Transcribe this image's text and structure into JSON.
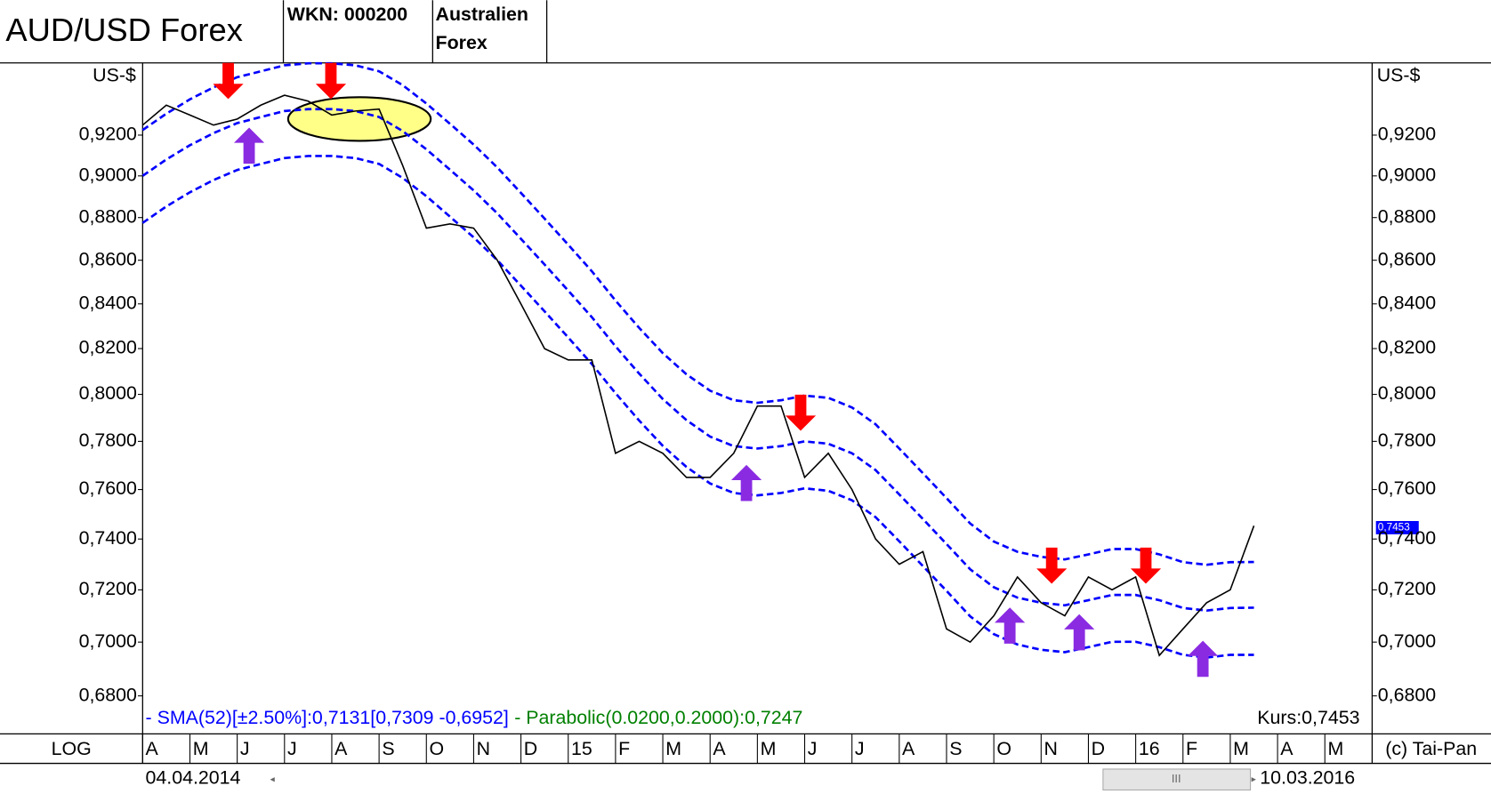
{
  "header": {
    "title": "AUD/USD Forex",
    "wkn": "WKN: 000200",
    "name_lines": [
      "Australien",
      "Forex"
    ]
  },
  "chart_data": {
    "type": "line",
    "log_scale": true,
    "y_axis_label": "US-$",
    "y2_axis_label": "US-$",
    "scale_mode": "LOG",
    "copyright": "(c) Tai-Pan",
    "start_date": "04.04.2014",
    "end_date": "10.03.2016",
    "price_tag": "0,7453",
    "current_price": "Kurs:0,7453",
    "annotations": [
      "- Parabolic(0.0200,0.2000):0,7247"
    ],
    "categories": [
      "A",
      null,
      "M",
      null,
      "J",
      null,
      "J",
      null,
      "A",
      null,
      "S",
      null,
      "O",
      null,
      "N",
      null,
      "D",
      null,
      "15",
      null,
      "F",
      null,
      "M",
      null,
      "A",
      null,
      "M",
      null,
      "J",
      null,
      "J",
      null,
      "A",
      null,
      "S",
      null,
      "O",
      null,
      "N",
      null,
      "D",
      null,
      "16",
      null,
      "F",
      null,
      "M",
      null,
      "A",
      null,
      "M",
      null
    ],
    "ylim": [
      0.6662,
      0.9565
    ],
    "yticks": [
      {
        "value": 0.68,
        "label": "0,6800"
      },
      {
        "value": 0.7,
        "label": "0,7000"
      },
      {
        "value": 0.72,
        "label": "0,7200"
      },
      {
        "value": 0.74,
        "label": "0,7400"
      },
      {
        "value": 0.76,
        "label": "0,7600"
      },
      {
        "value": 0.78,
        "label": "0,7800"
      },
      {
        "value": 0.8,
        "label": "0,8000"
      },
      {
        "value": 0.82,
        "label": "0,8200"
      },
      {
        "value": 0.84,
        "label": "0,8400"
      },
      {
        "value": 0.86,
        "label": "0,8600"
      },
      {
        "value": 0.88,
        "label": "0,8800"
      },
      {
        "value": 0.9,
        "label": "0,9000"
      },
      {
        "value": 0.92,
        "label": "0,9200"
      }
    ],
    "series": [
      {
        "name": "- SMA(52)[±2.50%]:0,7131[0,7309 -0,6952]",
        "color": "#0000ff",
        "style": "dashed",
        "values": [
          0.9,
          0.908,
          0.915,
          0.921,
          0.926,
          0.929,
          0.932,
          0.933,
          0.933,
          0.932,
          0.929,
          0.922,
          0.913,
          0.903,
          0.893,
          0.882,
          0.87,
          0.858,
          0.846,
          0.834,
          0.821,
          0.809,
          0.798,
          0.789,
          0.782,
          0.778,
          0.777,
          0.778,
          0.78,
          0.779,
          0.775,
          0.768,
          0.758,
          0.748,
          0.738,
          0.728,
          0.721,
          0.717,
          0.715,
          0.714,
          0.716,
          0.718,
          0.718,
          0.716,
          0.713,
          0.712,
          0.713,
          0.7131,
          null,
          null,
          null,
          null
        ]
      },
      {
        "color": "#0000ff",
        "style": "dashed",
        "values": [
          0.9225,
          0.9307,
          0.9379,
          0.944,
          0.9492,
          0.9522,
          0.9553,
          0.9563,
          0.9563,
          0.9553,
          0.9522,
          0.9451,
          0.9358,
          0.9256,
          0.9153,
          0.9041,
          0.8918,
          0.8795,
          0.8672,
          0.8549,
          0.8415,
          0.8292,
          0.818,
          0.8087,
          0.8016,
          0.7975,
          0.7964,
          0.7975,
          0.7995,
          0.7985,
          0.7944,
          0.7872,
          0.777,
          0.7667,
          0.7565,
          0.7462,
          0.739,
          0.7349,
          0.7329,
          0.7319,
          0.7339,
          0.736,
          0.736,
          0.7339,
          0.7308,
          0.7298,
          0.7308,
          0.7309,
          null,
          null,
          null,
          null
        ]
      },
      {
        "color": "#0000ff",
        "style": "dashed",
        "values": [
          0.8775,
          0.8853,
          0.8921,
          0.898,
          0.9029,
          0.9058,
          0.9087,
          0.9097,
          0.9097,
          0.9087,
          0.9058,
          0.899,
          0.8902,
          0.8804,
          0.8707,
          0.86,
          0.8483,
          0.8366,
          0.8249,
          0.8132,
          0.8005,
          0.7888,
          0.7781,
          0.7693,
          0.7625,
          0.7586,
          0.7576,
          0.7586,
          0.7605,
          0.7595,
          0.7556,
          0.7488,
          0.7391,
          0.7293,
          0.7196,
          0.7098,
          0.703,
          0.6991,
          0.6971,
          0.6962,
          0.6981,
          0.7001,
          0.7001,
          0.6981,
          0.6952,
          0.6942,
          0.6952,
          0.6952,
          null,
          null,
          null,
          null
        ]
      },
      {
        "color": "#000000",
        "style": "solid",
        "values": [
          0.925,
          0.935,
          0.93,
          0.925,
          0.928,
          0.935,
          0.94,
          0.937,
          0.93,
          0.932,
          0.933,
          0.905,
          0.875,
          0.877,
          0.875,
          0.86,
          0.84,
          0.82,
          0.815,
          0.815,
          0.775,
          0.78,
          0.775,
          0.765,
          0.765,
          0.775,
          0.795,
          0.795,
          0.765,
          0.775,
          0.76,
          0.74,
          0.73,
          0.735,
          0.705,
          0.7,
          0.71,
          0.725,
          0.715,
          0.71,
          0.725,
          0.72,
          0.725,
          0.695,
          0.705,
          0.715,
          0.72,
          0.7453,
          null,
          null,
          null,
          null
        ]
      }
    ]
  }
}
